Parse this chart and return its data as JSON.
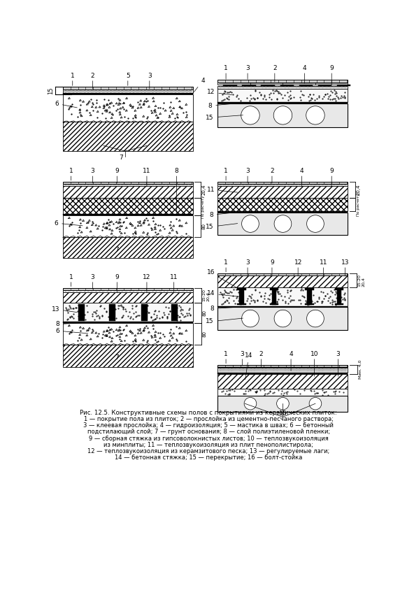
{
  "figure_width": 5.82,
  "figure_height": 8.51,
  "bg_color": "#ffffff",
  "caption_title": "Рис. 12.5. Конструктивные схемы полов с покрытиями из керамических плиток:",
  "caption_lines": [
    "1 — покрытие пола из плиток; 2 — прослойка из цементно-песчаного раствора;",
    "3 — клеевая прослойка; 4 — гидроизоляция; 5 — мастика в швах; 6 — бетонный",
    "подстилающий слой; 7 — грунт основания; 8 — слой полиэтиленовой пленки;",
    "9 — сборная стяжка из гипсоволокнистых листов; 10 — теплозвукоизоляция",
    "из минплиты; 11 — теплозвукоизоляция из плит пенополистирола;",
    "12 — теплозвукоизоляция из керамзитового песка; 13 — регулируемые лаги;",
    "14 — бетонная стяжка; 15 — перекрытие; 16 — болт-стойка"
  ]
}
